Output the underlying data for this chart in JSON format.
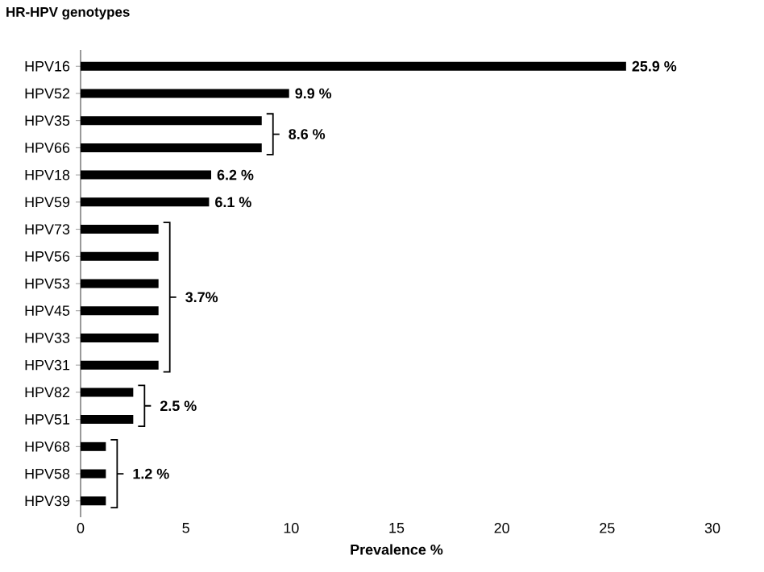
{
  "chart_data": {
    "type": "bar",
    "orientation": "horizontal",
    "ylabel": "HR-HPV genotypes",
    "xlabel": "Prevalence %",
    "categories": [
      "HPV16",
      "HPV52",
      "HPV35",
      "HPV66",
      "HPV18",
      "HPV59",
      "HPV73",
      "HPV56",
      "HPV53",
      "HPV45",
      "HPV33",
      "HPV31",
      "HPV82",
      "HPV51",
      "HPV68",
      "HPV58",
      "HPV39"
    ],
    "values": [
      25.9,
      9.9,
      8.6,
      8.6,
      6.2,
      6.1,
      3.7,
      3.7,
      3.7,
      3.7,
      3.7,
      3.7,
      2.5,
      2.5,
      1.2,
      1.2,
      1.2
    ],
    "value_labels": [
      "25.9 %",
      "9.9 %",
      "8.6 %",
      null,
      "6.2 %",
      "6.1 %",
      null,
      null,
      "3.7%",
      null,
      null,
      null,
      "2.5 %",
      null,
      null,
      "1.2 %",
      null
    ],
    "color": "#000000",
    "xlim": [
      0,
      30
    ],
    "xticks": [
      0,
      5,
      10,
      15,
      20,
      25,
      30
    ],
    "grid": false
  }
}
